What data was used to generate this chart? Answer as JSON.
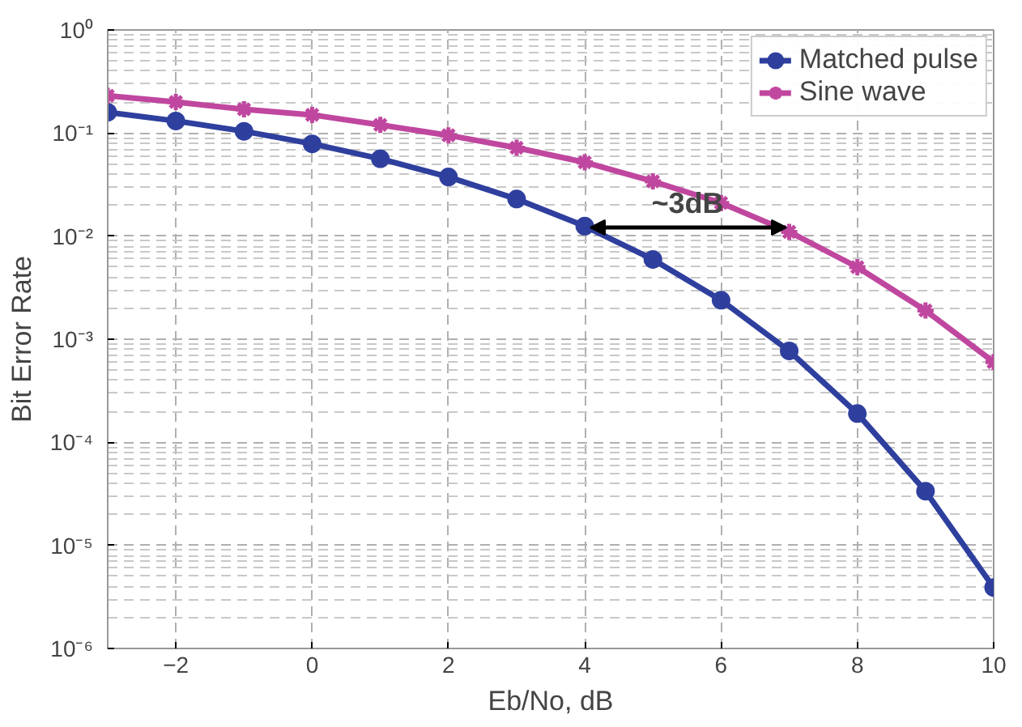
{
  "chart_data": {
    "type": "line",
    "xlabel": "Eb/No, dB",
    "ylabel": "Bit Error Rate",
    "x": [
      -3,
      -2,
      -1,
      0,
      1,
      2,
      3,
      4,
      5,
      6,
      7,
      8,
      9,
      10
    ],
    "series": [
      {
        "name": "Matched pulse",
        "color": "#2e3f9e",
        "marker": "circle",
        "values": [
          0.159,
          0.131,
          0.104,
          0.0786,
          0.0563,
          0.0375,
          0.0229,
          0.0125,
          0.00595,
          0.00239,
          0.00077,
          0.00019,
          3.36e-05,
          3.9e-06
        ]
      },
      {
        "name": "Sine wave",
        "color": "#c0479f",
        "marker": "cross",
        "values": [
          0.23,
          0.2,
          0.17,
          0.15,
          0.12,
          0.095,
          0.072,
          0.052,
          0.034,
          0.021,
          0.011,
          0.005,
          0.0019,
          0.0006
        ]
      }
    ],
    "log": "y",
    "xlim": [
      -3,
      10
    ],
    "ylim": [
      1e-06,
      1
    ],
    "xticks": [
      -2,
      0,
      2,
      4,
      6,
      8,
      10
    ],
    "yticks": [
      {
        "value": 1e-06,
        "label": "10⁻⁶"
      },
      {
        "value": 1e-05,
        "label": "10⁻⁵"
      },
      {
        "value": 0.0001,
        "label": "10⁻⁴"
      },
      {
        "value": 0.001,
        "label": "10⁻³"
      },
      {
        "value": 0.01,
        "label": "10⁻²"
      },
      {
        "value": 0.1,
        "label": "10⁻¹"
      },
      {
        "value": 1,
        "label": "10⁰"
      }
    ],
    "annotations": [
      "~3dB"
    ],
    "grid": true,
    "legend": "top right",
    "line_style": "solid"
  }
}
